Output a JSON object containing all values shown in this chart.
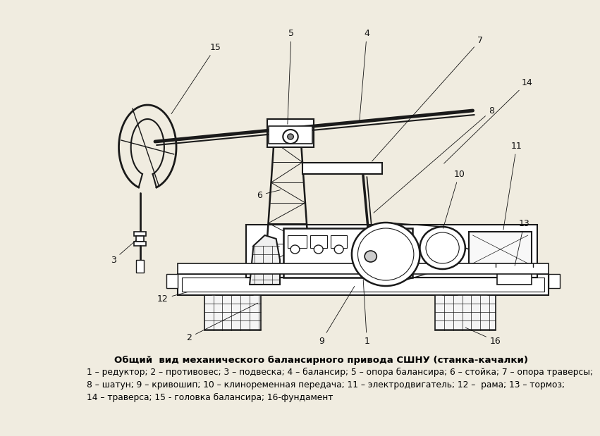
{
  "bg_left_color": "#e8d5a3",
  "bg_right_color": "#f0ece0",
  "main_area_color": "#ffffff",
  "line_color": "#1a1a1a",
  "title": "Общий  вид механического балансирного привода СШНУ (станка-качалки)",
  "caption_lines": [
    "1 – редуктор; 2 – противовес; 3 – подвеска; 4 – балансир; 5 – опора балансира; 6 – стойка; 7 – опора траверсы;",
    "8 – шатун; 9 – кривошип; 10 – клиноременная передача; 11 – электродвигатель; 12 –  рама; 13 – тормоз;",
    "14 – траверса; 15 - головка балансира; 16-фундамент"
  ],
  "title_fontsize": 9.5,
  "caption_fontsize": 8.8,
  "ann_fontsize": 9,
  "ann_lw": 0.6
}
